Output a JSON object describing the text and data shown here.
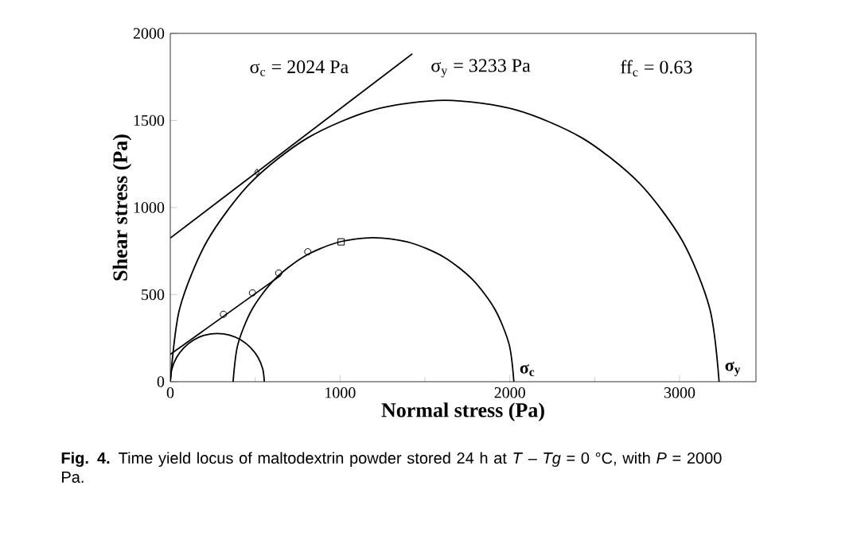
{
  "chart_data": {
    "type": "line",
    "xlabel": "Normal stress (Pa)",
    "ylabel": "Shear stress (Pa)",
    "xlim": [
      0,
      3450
    ],
    "ylim": [
      0,
      2000
    ],
    "xticks": [
      0,
      1000,
      2000,
      3000
    ],
    "yticks": [
      0,
      500,
      1000,
      1500,
      2000
    ],
    "series": [
      {
        "color": "#000000",
        "x": [
          0,
          55,
          217,
          474,
          809,
          1198,
          1617,
          2035,
          2425,
          2760,
          3017,
          3178,
          3233
        ],
        "values": [
          0,
          419,
          808,
          1143,
          1400,
          1561,
          1616,
          1561,
          1400,
          1143,
          808,
          419,
          0
        ]
      },
      {
        "color": "#000000",
        "x": [
          370,
          398,
          481,
          612,
          783,
          983,
          1197,
          1411,
          1611,
          1782,
          1913,
          1996,
          2024
        ],
        "values": [
          0,
          214,
          414,
          585,
          716,
          799,
          827,
          799,
          716,
          585,
          414,
          214,
          0
        ]
      },
      {
        "color": "#000000",
        "x": [
          0,
          9,
          37,
          81,
          138,
          205,
          277,
          349,
          416,
          473,
          517,
          545,
          554
        ],
        "values": [
          0,
          72,
          139,
          196,
          240,
          268,
          277,
          268,
          240,
          196,
          139,
          72,
          0
        ]
      },
      {
        "color": "#000000",
        "x": [
          0,
          650
        ],
        "values": [
          157,
          610
        ]
      },
      {
        "color": "#000000",
        "x": [
          0,
          1426
        ],
        "values": [
          825,
          1883
        ]
      },
      {
        "type": "scatter",
        "marker": "circle",
        "color": "#000000",
        "x": [
          313,
          484,
          639,
          810
        ],
        "values": [
          387,
          510,
          624,
          746
        ]
      },
      {
        "type": "scatter",
        "marker": "square",
        "color": "#000000",
        "x": [
          1006
        ],
        "values": [
          803
        ]
      },
      {
        "type": "scatter",
        "marker": "diamond",
        "color": "#000000",
        "x": [
          510
        ],
        "values": [
          1203
        ]
      }
    ],
    "annotations": [
      "σ$_{c}$ = 2024 Pa",
      "σ$_{y}$ = 3233 Pa",
      "ff$_{c}$ = 0.63",
      {
        "text": "σ$_{c}$",
        "x": 2024,
        "y": 0
      },
      {
        "text": "σ$_{y}$",
        "x": 3233,
        "y": 0
      },
      "**Fig. 4.** Time yield locus of maltodextrin powder stored 24 h at *T* – *Tg* = 0 °C, with *P* = 2000 Pa."
    ]
  }
}
